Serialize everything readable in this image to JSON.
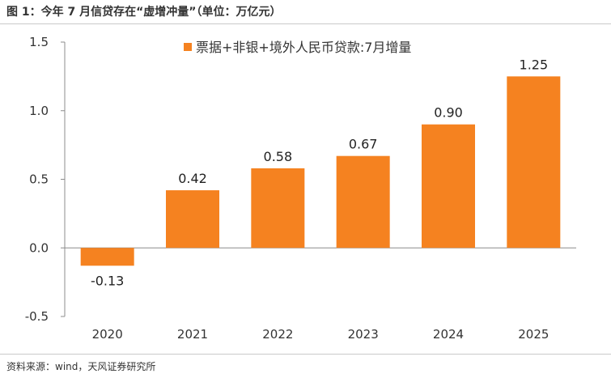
{
  "header": {
    "title": "图 1：今年 7 月信贷存在“虚增冲量”（单位：万亿元）"
  },
  "footer": {
    "source": "资料来源：wind，天风证券研究所"
  },
  "chart_data": {
    "type": "bar",
    "title": "",
    "xlabel": "",
    "ylabel": "",
    "categories": [
      "2020",
      "2021",
      "2022",
      "2023",
      "2024",
      "2025"
    ],
    "series": [
      {
        "name": "票据+非银+境外人民币贷款:7月增量",
        "values": [
          -0.13,
          0.42,
          0.58,
          0.67,
          0.9,
          1.25
        ],
        "color": "#f58220"
      }
    ],
    "data_labels": [
      "-0.13",
      "0.42",
      "0.58",
      "0.67",
      "0.90",
      "1.25"
    ],
    "ylim": [
      -0.5,
      1.5
    ],
    "yticks": [
      -0.5,
      0.0,
      0.5,
      1.0,
      1.5
    ],
    "ytick_labels": [
      "-0.5",
      "0.0",
      "0.5",
      "1.0",
      "1.5"
    ],
    "grid": false,
    "legend": "top-center"
  }
}
